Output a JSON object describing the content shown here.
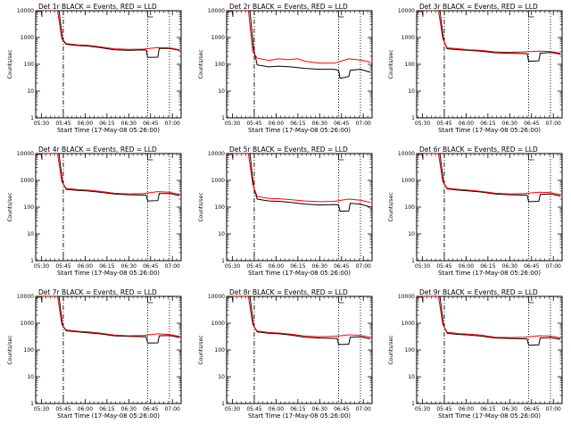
{
  "chart_data": {
    "type": "line",
    "x_tick_labels": [
      "05:30",
      "05:45",
      "06:00",
      "06:15",
      "06:30",
      "06:45",
      "07:00"
    ],
    "x_ticks_minutes": [
      0,
      15,
      30,
      45,
      60,
      75,
      90
    ],
    "xlim_minutes": [
      -4,
      96
    ],
    "xlabel": "Start Time (17-May-08 05:26:00)",
    "ylabel": "Counts/sec",
    "y_tick_labels": [
      "10000",
      "1000",
      "100",
      "10",
      "1"
    ],
    "y_tick_values": [
      10000,
      1000,
      100,
      10,
      1
    ],
    "ylim": [
      1,
      10000
    ],
    "yscale": "log",
    "markers": {
      "dash_dot_minutes": 15,
      "dotted_minutes": [
        73,
        88
      ]
    },
    "series_colors": {
      "events": "#000000",
      "lld": "#ff0000"
    },
    "panels": [
      {
        "title": "Det 1r BLACK = Events, RED = LLD",
        "events": [
          [
            -4,
            10000
          ],
          [
            12,
            10000
          ],
          [
            14.5,
            800
          ],
          [
            17,
            560
          ],
          [
            25,
            500
          ],
          [
            32,
            480
          ],
          [
            40,
            420
          ],
          [
            50,
            350
          ],
          [
            60,
            330
          ],
          [
            70,
            345
          ],
          [
            72,
            340
          ],
          [
            73,
            180
          ],
          [
            80,
            185
          ],
          [
            81,
            390
          ],
          [
            88,
            390
          ],
          [
            95,
            330
          ]
        ],
        "lld": [
          [
            -4,
            10000
          ],
          [
            11,
            10000
          ],
          [
            14,
            900
          ],
          [
            17,
            600
          ],
          [
            25,
            530
          ],
          [
            32,
            510
          ],
          [
            40,
            450
          ],
          [
            50,
            380
          ],
          [
            60,
            360
          ],
          [
            70,
            370
          ],
          [
            80,
            420
          ],
          [
            88,
            410
          ],
          [
            95,
            350
          ]
        ]
      },
      {
        "title": "Det 2r BLACK = Events, RED = LLD",
        "events": [
          [
            -4,
            10000
          ],
          [
            12,
            10000
          ],
          [
            14.5,
            400
          ],
          [
            17,
            95
          ],
          [
            25,
            80
          ],
          [
            32,
            85
          ],
          [
            40,
            80
          ],
          [
            50,
            70
          ],
          [
            60,
            65
          ],
          [
            70,
            65
          ],
          [
            73,
            60
          ],
          [
            74,
            30
          ],
          [
            80,
            35
          ],
          [
            81,
            60
          ],
          [
            88,
            65
          ],
          [
            95,
            50
          ]
        ],
        "lld": [
          [
            -4,
            10000
          ],
          [
            11,
            10000
          ],
          [
            14,
            300
          ],
          [
            17,
            170
          ],
          [
            25,
            140
          ],
          [
            32,
            160
          ],
          [
            38,
            150
          ],
          [
            45,
            160
          ],
          [
            50,
            130
          ],
          [
            60,
            110
          ],
          [
            70,
            110
          ],
          [
            80,
            160
          ],
          [
            88,
            145
          ],
          [
            95,
            120
          ]
        ]
      },
      {
        "title": "Det 3r BLACK = Events, RED = LLD",
        "events": [
          [
            -4,
            10000
          ],
          [
            12,
            10000
          ],
          [
            14.5,
            800
          ],
          [
            17,
            380
          ],
          [
            25,
            350
          ],
          [
            32,
            330
          ],
          [
            40,
            310
          ],
          [
            50,
            270
          ],
          [
            60,
            260
          ],
          [
            72,
            250
          ],
          [
            73,
            130
          ],
          [
            80,
            135
          ],
          [
            81,
            260
          ],
          [
            88,
            280
          ],
          [
            95,
            240
          ]
        ],
        "lld": [
          [
            -4,
            10000
          ],
          [
            11,
            10000
          ],
          [
            14,
            900
          ],
          [
            17,
            410
          ],
          [
            25,
            380
          ],
          [
            32,
            350
          ],
          [
            40,
            330
          ],
          [
            50,
            290
          ],
          [
            60,
            280
          ],
          [
            70,
            290
          ],
          [
            80,
            310
          ],
          [
            88,
            300
          ],
          [
            95,
            260
          ]
        ]
      },
      {
        "title": "Det 4r BLACK = Events, RED = LLD",
        "events": [
          [
            -4,
            10000
          ],
          [
            12,
            10000
          ],
          [
            14.5,
            800
          ],
          [
            17,
            460
          ],
          [
            25,
            420
          ],
          [
            32,
            400
          ],
          [
            40,
            360
          ],
          [
            50,
            310
          ],
          [
            60,
            290
          ],
          [
            72,
            280
          ],
          [
            73,
            170
          ],
          [
            80,
            175
          ],
          [
            81,
            320
          ],
          [
            88,
            320
          ],
          [
            95,
            270
          ]
        ],
        "lld": [
          [
            -4,
            10000
          ],
          [
            11,
            10000
          ],
          [
            14,
            900
          ],
          [
            17,
            500
          ],
          [
            25,
            450
          ],
          [
            32,
            430
          ],
          [
            40,
            390
          ],
          [
            50,
            330
          ],
          [
            60,
            310
          ],
          [
            70,
            320
          ],
          [
            80,
            380
          ],
          [
            88,
            360
          ],
          [
            95,
            300
          ]
        ]
      },
      {
        "title": "Det 5r BLACK = Events, RED = LLD",
        "events": [
          [
            -4,
            10000
          ],
          [
            12,
            10000
          ],
          [
            14.5,
            600
          ],
          [
            17,
            200
          ],
          [
            25,
            170
          ],
          [
            32,
            165
          ],
          [
            40,
            150
          ],
          [
            50,
            130
          ],
          [
            60,
            120
          ],
          [
            70,
            125
          ],
          [
            73,
            120
          ],
          [
            74,
            70
          ],
          [
            80,
            72
          ],
          [
            81,
            140
          ],
          [
            88,
            130
          ],
          [
            95,
            100
          ]
        ],
        "lld": [
          [
            -4,
            10000
          ],
          [
            11,
            10000
          ],
          [
            14,
            700
          ],
          [
            17,
            250
          ],
          [
            25,
            210
          ],
          [
            32,
            205
          ],
          [
            40,
            190
          ],
          [
            50,
            170
          ],
          [
            60,
            160
          ],
          [
            70,
            165
          ],
          [
            80,
            200
          ],
          [
            88,
            180
          ],
          [
            95,
            150
          ]
        ]
      },
      {
        "title": "Det 6r BLACK = Events, RED = LLD",
        "events": [
          [
            -4,
            10000
          ],
          [
            12,
            10000
          ],
          [
            14.5,
            800
          ],
          [
            17,
            480
          ],
          [
            25,
            430
          ],
          [
            32,
            400
          ],
          [
            40,
            370
          ],
          [
            50,
            310
          ],
          [
            60,
            290
          ],
          [
            72,
            280
          ],
          [
            73,
            160
          ],
          [
            80,
            165
          ],
          [
            81,
            300
          ],
          [
            88,
            310
          ],
          [
            95,
            260
          ]
        ],
        "lld": [
          [
            -4,
            10000
          ],
          [
            11,
            10000
          ],
          [
            14,
            900
          ],
          [
            17,
            510
          ],
          [
            25,
            460
          ],
          [
            32,
            430
          ],
          [
            40,
            390
          ],
          [
            50,
            330
          ],
          [
            60,
            310
          ],
          [
            70,
            320
          ],
          [
            80,
            360
          ],
          [
            88,
            350
          ],
          [
            95,
            290
          ]
        ]
      },
      {
        "title": "Det 7r BLACK = Events, RED = LLD",
        "events": [
          [
            -4,
            10000
          ],
          [
            12,
            10000
          ],
          [
            14.5,
            800
          ],
          [
            17,
            520
          ],
          [
            25,
            470
          ],
          [
            32,
            440
          ],
          [
            40,
            400
          ],
          [
            50,
            340
          ],
          [
            60,
            320
          ],
          [
            72,
            310
          ],
          [
            73,
            180
          ],
          [
            80,
            185
          ],
          [
            81,
            340
          ],
          [
            88,
            350
          ],
          [
            95,
            290
          ]
        ],
        "lld": [
          [
            -4,
            10000
          ],
          [
            11,
            10000
          ],
          [
            14,
            900
          ],
          [
            17,
            560
          ],
          [
            25,
            500
          ],
          [
            32,
            470
          ],
          [
            40,
            430
          ],
          [
            50,
            360
          ],
          [
            60,
            340
          ],
          [
            70,
            350
          ],
          [
            80,
            400
          ],
          [
            88,
            380
          ],
          [
            95,
            320
          ]
        ]
      },
      {
        "title": "Det 8r BLACK = Events, RED = LLD",
        "events": [
          [
            -4,
            10000
          ],
          [
            12,
            10000
          ],
          [
            14.5,
            800
          ],
          [
            17,
            470
          ],
          [
            25,
            420
          ],
          [
            32,
            400
          ],
          [
            40,
            360
          ],
          [
            50,
            300
          ],
          [
            60,
            280
          ],
          [
            72,
            270
          ],
          [
            73,
            160
          ],
          [
            80,
            165
          ],
          [
            81,
            300
          ],
          [
            88,
            310
          ],
          [
            95,
            260
          ]
        ],
        "lld": [
          [
            -4,
            10000
          ],
          [
            11,
            10000
          ],
          [
            14,
            900
          ],
          [
            17,
            510
          ],
          [
            25,
            450
          ],
          [
            32,
            430
          ],
          [
            40,
            390
          ],
          [
            50,
            330
          ],
          [
            60,
            310
          ],
          [
            70,
            320
          ],
          [
            80,
            370
          ],
          [
            88,
            350
          ],
          [
            95,
            300
          ]
        ]
      },
      {
        "title": "Det 9r BLACK = Events, RED = LLD",
        "events": [
          [
            -4,
            10000
          ],
          [
            12,
            10000
          ],
          [
            14.5,
            800
          ],
          [
            17,
            420
          ],
          [
            25,
            380
          ],
          [
            32,
            360
          ],
          [
            40,
            330
          ],
          [
            50,
            280
          ],
          [
            60,
            270
          ],
          [
            72,
            260
          ],
          [
            73,
            150
          ],
          [
            80,
            155
          ],
          [
            81,
            280
          ],
          [
            88,
            290
          ],
          [
            95,
            250
          ]
        ],
        "lld": [
          [
            -4,
            10000
          ],
          [
            11,
            10000
          ],
          [
            14,
            900
          ],
          [
            17,
            460
          ],
          [
            25,
            410
          ],
          [
            32,
            390
          ],
          [
            40,
            360
          ],
          [
            50,
            300
          ],
          [
            60,
            290
          ],
          [
            70,
            300
          ],
          [
            80,
            340
          ],
          [
            88,
            330
          ],
          [
            95,
            280
          ]
        ]
      }
    ]
  }
}
